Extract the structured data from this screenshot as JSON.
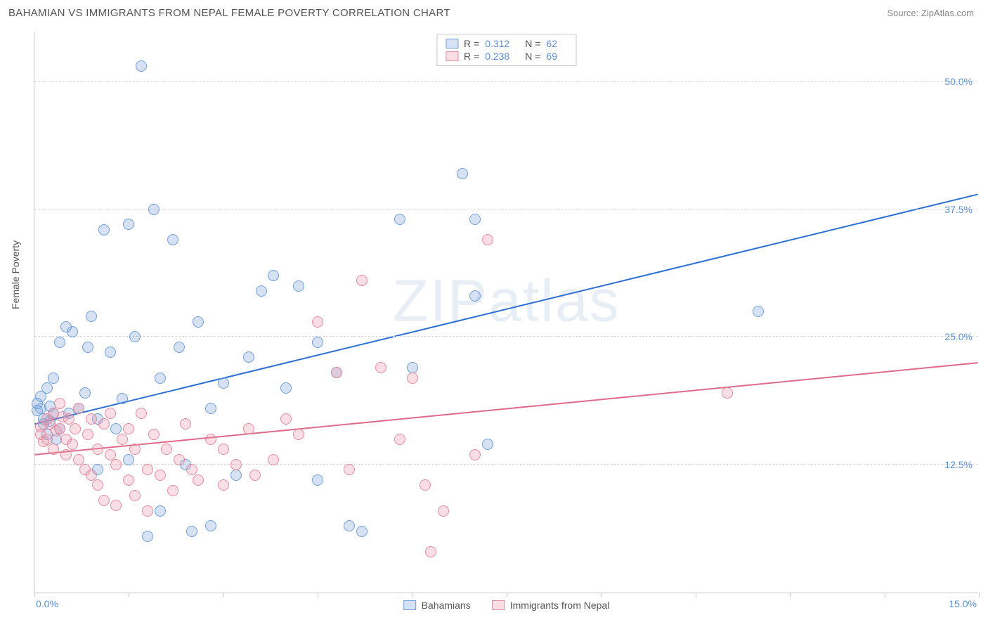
{
  "header": {
    "title": "BAHAMIAN VS IMMIGRANTS FROM NEPAL FEMALE POVERTY CORRELATION CHART",
    "source": "Source: ZipAtlas.com"
  },
  "chart": {
    "type": "scatter",
    "ylabel": "Female Poverty",
    "watermark": "ZIPatlas",
    "xlim": [
      0,
      15
    ],
    "ylim": [
      0,
      55
    ],
    "xtick_positions": [
      0,
      1.5,
      3.0,
      4.5,
      6.0,
      7.5,
      9.0,
      10.5,
      12.0,
      13.5,
      15.0
    ],
    "xtick_labels": {
      "0": "0.0%",
      "15": "15.0%"
    },
    "ytick_positions": [
      12.5,
      25.0,
      37.5,
      50.0
    ],
    "ytick_labels": [
      "12.5%",
      "25.0%",
      "37.5%",
      "50.0%"
    ],
    "grid_color": "#d8d8d8",
    "axis_color": "#c8c8c8",
    "label_color": "#555555",
    "tick_label_color": "#5b8fd6",
    "background_color": "#ffffff",
    "marker_radius": 8,
    "series": [
      {
        "name": "Bahamians",
        "fill": "rgba(120,160,220,0.30)",
        "stroke": "#6f9fd8",
        "trend_color": "#2c6fd6",
        "r_label": "R  =",
        "r_value": "0.312",
        "n_label": "N  =",
        "n_value": "62",
        "trend": {
          "x1": 0,
          "y1": 16.5,
          "x2": 15,
          "y2": 39.0
        },
        "points": [
          [
            0.05,
            18.5
          ],
          [
            0.05,
            17.8
          ],
          [
            0.1,
            18.0
          ],
          [
            0.1,
            19.2
          ],
          [
            0.15,
            16.5
          ],
          [
            0.15,
            17.0
          ],
          [
            0.2,
            20.0
          ],
          [
            0.2,
            15.5
          ],
          [
            0.25,
            16.8
          ],
          [
            0.25,
            18.2
          ],
          [
            0.3,
            17.5
          ],
          [
            0.3,
            21.0
          ],
          [
            0.35,
            15.0
          ],
          [
            0.4,
            24.5
          ],
          [
            0.4,
            16.0
          ],
          [
            0.5,
            26.0
          ],
          [
            0.55,
            17.5
          ],
          [
            0.6,
            25.5
          ],
          [
            0.7,
            18.0
          ],
          [
            0.8,
            19.5
          ],
          [
            0.85,
            24.0
          ],
          [
            0.9,
            27.0
          ],
          [
            1.0,
            17.0
          ],
          [
            1.0,
            12.0
          ],
          [
            1.1,
            35.5
          ],
          [
            1.2,
            23.5
          ],
          [
            1.3,
            16.0
          ],
          [
            1.4,
            19.0
          ],
          [
            1.5,
            36.0
          ],
          [
            1.5,
            13.0
          ],
          [
            1.6,
            25.0
          ],
          [
            1.7,
            51.5
          ],
          [
            1.8,
            5.5
          ],
          [
            1.9,
            37.5
          ],
          [
            2.0,
            21.0
          ],
          [
            2.0,
            8.0
          ],
          [
            2.2,
            34.5
          ],
          [
            2.3,
            24.0
          ],
          [
            2.4,
            12.5
          ],
          [
            2.5,
            6.0
          ],
          [
            2.6,
            26.5
          ],
          [
            2.8,
            18.0
          ],
          [
            2.8,
            6.5
          ],
          [
            3.0,
            20.5
          ],
          [
            3.2,
            11.5
          ],
          [
            3.4,
            23.0
          ],
          [
            3.6,
            29.5
          ],
          [
            3.8,
            31.0
          ],
          [
            4.0,
            20.0
          ],
          [
            4.2,
            30.0
          ],
          [
            4.5,
            24.5
          ],
          [
            4.5,
            11.0
          ],
          [
            4.8,
            21.5
          ],
          [
            5.0,
            6.5
          ],
          [
            5.2,
            6.0
          ],
          [
            5.8,
            36.5
          ],
          [
            6.0,
            22.0
          ],
          [
            6.8,
            41.0
          ],
          [
            7.0,
            29.0
          ],
          [
            7.0,
            36.5
          ],
          [
            7.2,
            14.5
          ],
          [
            11.5,
            27.5
          ]
        ]
      },
      {
        "name": "Immigrants from Nepal",
        "fill": "rgba(235,150,170,0.30)",
        "stroke": "#e38ba0",
        "trend_color": "#e06a88",
        "r_label": "R  =",
        "r_value": "0.238",
        "n_label": "N  =",
        "n_value": "69",
        "trend": {
          "x1": 0,
          "y1": 13.5,
          "x2": 15,
          "y2": 22.5
        },
        "points": [
          [
            0.1,
            15.5
          ],
          [
            0.1,
            16.2
          ],
          [
            0.15,
            14.8
          ],
          [
            0.2,
            17.0
          ],
          [
            0.2,
            15.0
          ],
          [
            0.25,
            16.5
          ],
          [
            0.3,
            14.0
          ],
          [
            0.3,
            17.5
          ],
          [
            0.35,
            15.8
          ],
          [
            0.4,
            16.0
          ],
          [
            0.4,
            18.5
          ],
          [
            0.45,
            17.2
          ],
          [
            0.5,
            13.5
          ],
          [
            0.5,
            15.0
          ],
          [
            0.55,
            17.0
          ],
          [
            0.6,
            14.5
          ],
          [
            0.65,
            16.0
          ],
          [
            0.7,
            13.0
          ],
          [
            0.7,
            18.0
          ],
          [
            0.8,
            12.0
          ],
          [
            0.85,
            15.5
          ],
          [
            0.9,
            11.5
          ],
          [
            0.9,
            17.0
          ],
          [
            1.0,
            14.0
          ],
          [
            1.0,
            10.5
          ],
          [
            1.1,
            16.5
          ],
          [
            1.1,
            9.0
          ],
          [
            1.2,
            13.5
          ],
          [
            1.2,
            17.5
          ],
          [
            1.3,
            12.5
          ],
          [
            1.3,
            8.5
          ],
          [
            1.4,
            15.0
          ],
          [
            1.5,
            11.0
          ],
          [
            1.5,
            16.0
          ],
          [
            1.6,
            14.0
          ],
          [
            1.6,
            9.5
          ],
          [
            1.7,
            17.5
          ],
          [
            1.8,
            12.0
          ],
          [
            1.8,
            8.0
          ],
          [
            1.9,
            15.5
          ],
          [
            2.0,
            11.5
          ],
          [
            2.1,
            14.0
          ],
          [
            2.2,
            10.0
          ],
          [
            2.3,
            13.0
          ],
          [
            2.4,
            16.5
          ],
          [
            2.5,
            12.0
          ],
          [
            2.6,
            11.0
          ],
          [
            2.8,
            15.0
          ],
          [
            3.0,
            14.0
          ],
          [
            3.0,
            10.5
          ],
          [
            3.2,
            12.5
          ],
          [
            3.4,
            16.0
          ],
          [
            3.5,
            11.5
          ],
          [
            3.8,
            13.0
          ],
          [
            4.0,
            17.0
          ],
          [
            4.2,
            15.5
          ],
          [
            4.5,
            26.5
          ],
          [
            4.8,
            21.5
          ],
          [
            5.0,
            12.0
          ],
          [
            5.2,
            30.5
          ],
          [
            5.5,
            22.0
          ],
          [
            5.8,
            15.0
          ],
          [
            6.0,
            21.0
          ],
          [
            6.2,
            10.5
          ],
          [
            6.3,
            4.0
          ],
          [
            6.5,
            8.0
          ],
          [
            7.0,
            13.5
          ],
          [
            7.2,
            34.5
          ],
          [
            11.0,
            19.5
          ]
        ]
      }
    ]
  },
  "bottom_legend": [
    {
      "label": "Bahamians"
    },
    {
      "label": "Immigrants from Nepal"
    }
  ]
}
